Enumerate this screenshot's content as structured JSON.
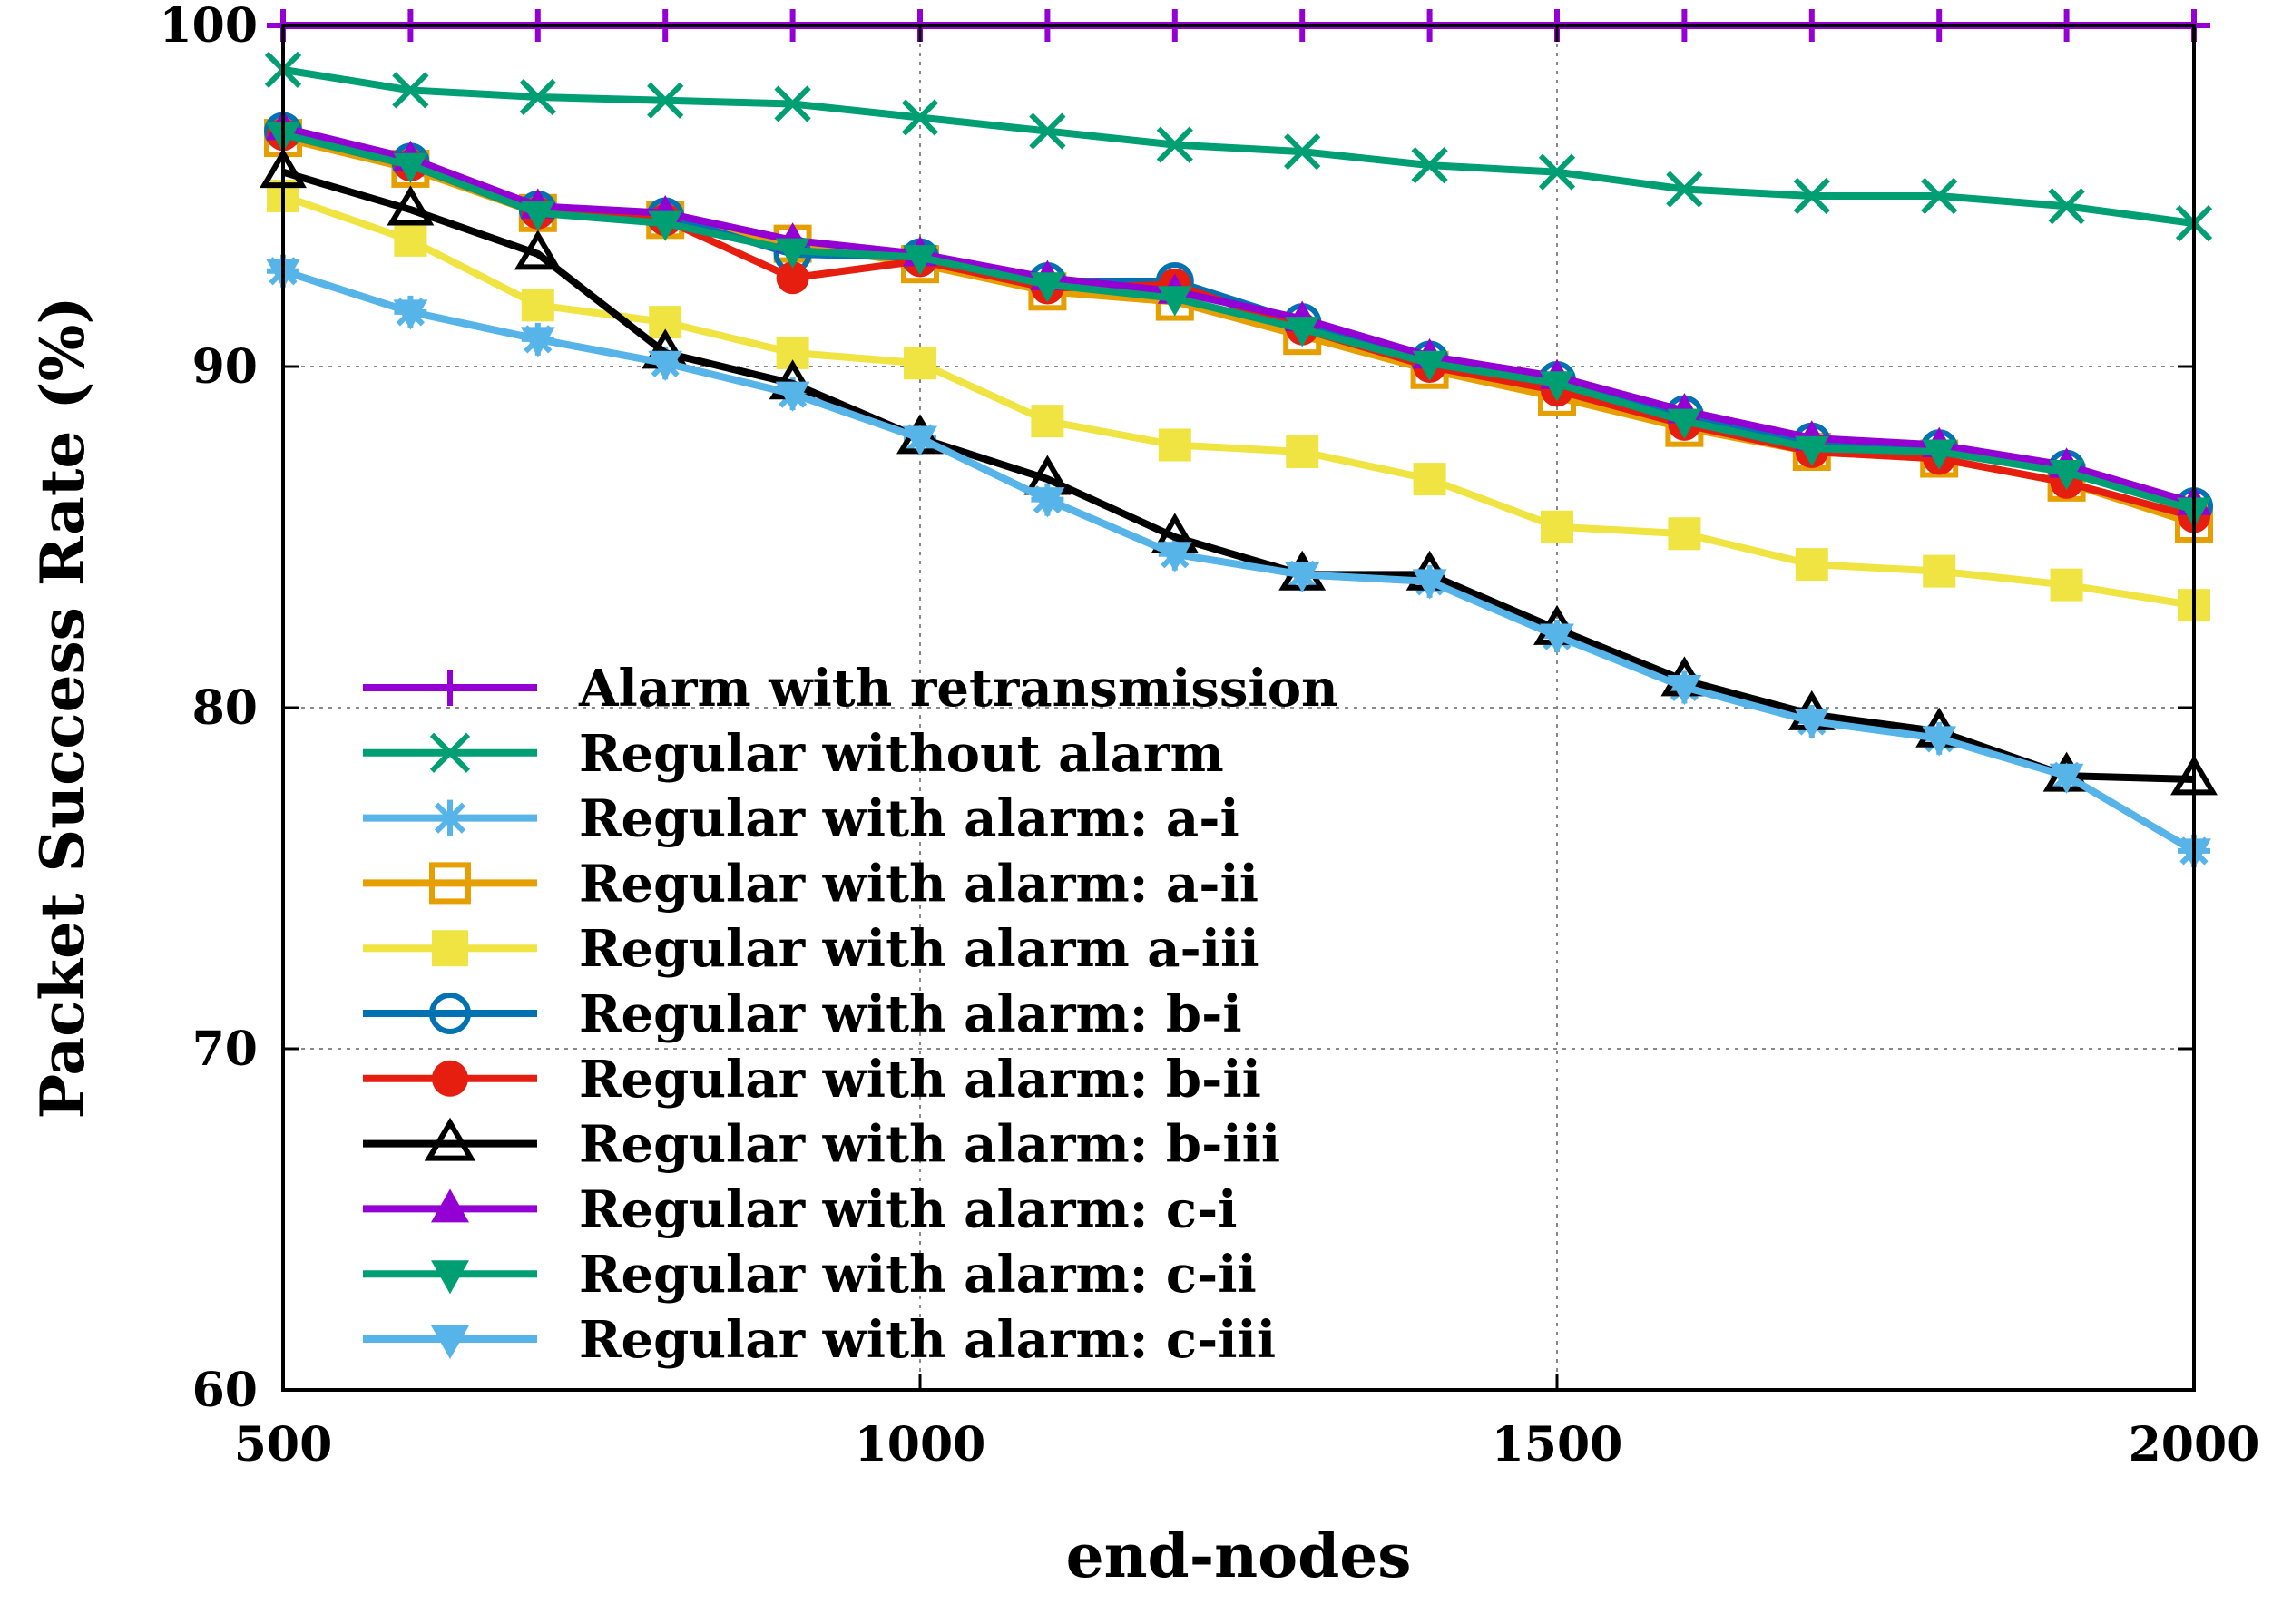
{
  "chart_data": {
    "type": "line",
    "xlabel": "end-nodes",
    "ylabel": "Packet Success Rate (%)",
    "xlim": [
      500,
      2000
    ],
    "ylim": [
      60,
      100
    ],
    "xticks": [
      500,
      1000,
      1500,
      2000
    ],
    "yticks": [
      60,
      70,
      80,
      90,
      100
    ],
    "grid": true,
    "legend_position": "bottom-left",
    "x": [
      500,
      600,
      700,
      800,
      900,
      1000,
      1100,
      1200,
      1300,
      1400,
      1500,
      1600,
      1700,
      1800,
      1900,
      2000
    ],
    "series": [
      {
        "name": "Alarm with retransmission",
        "color": "#9400d3",
        "marker": "plus",
        "values": [
          100,
          100,
          100,
          100,
          100,
          100,
          100,
          100,
          100,
          100,
          100,
          100,
          100,
          100,
          100,
          100
        ]
      },
      {
        "name": "Regular without alarm",
        "color": "#009e73",
        "marker": "cross",
        "values": [
          98.7,
          98.1,
          97.9,
          97.8,
          97.7,
          97.3,
          96.9,
          96.5,
          96.3,
          95.9,
          95.7,
          95.2,
          95.0,
          95.0,
          94.7,
          94.2
        ]
      },
      {
        "name": "Regular with alarm: a-i",
        "color": "#56b4e9",
        "marker": "star",
        "values": [
          92.8,
          91.6,
          90.8,
          90.1,
          89.2,
          87.9,
          86.1,
          84.5,
          83.9,
          83.7,
          82.1,
          80.6,
          79.6,
          79.1,
          78.0,
          75.8
        ]
      },
      {
        "name": "Regular with alarm: a-ii",
        "color": "#e69f00",
        "marker": "square-open",
        "values": [
          96.7,
          95.8,
          94.5,
          94.3,
          93.6,
          93.0,
          92.2,
          91.9,
          90.9,
          89.9,
          89.1,
          88.2,
          87.5,
          87.3,
          86.6,
          85.4
        ]
      },
      {
        "name": "Regular with alarm a-iii",
        "color": "#f0e442",
        "marker": "square-filled",
        "values": [
          95.0,
          93.7,
          91.8,
          91.3,
          90.4,
          90.1,
          88.4,
          87.7,
          87.5,
          86.7,
          85.3,
          85.1,
          84.2,
          84.0,
          83.6,
          83.0
        ]
      },
      {
        "name": "Regular with alarm: b-i",
        "color": "#0072b2",
        "marker": "circle-open",
        "values": [
          96.9,
          96.0,
          94.6,
          94.4,
          93.3,
          93.2,
          92.5,
          92.5,
          91.3,
          90.2,
          89.6,
          88.6,
          87.8,
          87.6,
          87.0,
          85.9
        ]
      },
      {
        "name": "Regular with alarm: b-ii",
        "color": "#e51e10",
        "marker": "circle-filled",
        "values": [
          96.8,
          95.9,
          94.5,
          94.3,
          92.6,
          93.1,
          92.3,
          92.4,
          91.1,
          90.0,
          89.3,
          88.3,
          87.5,
          87.3,
          86.6,
          85.6
        ]
      },
      {
        "name": "Regular with alarm: b-iii",
        "color": "#000000",
        "marker": "triangle-open",
        "values": [
          95.7,
          94.6,
          93.3,
          90.4,
          89.5,
          87.9,
          86.7,
          85.0,
          83.9,
          83.9,
          82.3,
          80.8,
          79.8,
          79.3,
          78.0,
          77.9
        ]
      },
      {
        "name": "Regular with alarm: c-i",
        "color": "#9400d3",
        "marker": "triangle-filled",
        "values": [
          97.0,
          96.1,
          94.7,
          94.5,
          93.7,
          93.3,
          92.6,
          92.2,
          91.4,
          90.3,
          89.7,
          88.7,
          87.9,
          87.7,
          87.1,
          86.0
        ]
      },
      {
        "name": "Regular with alarm: c-ii",
        "color": "#009e73",
        "marker": "triangle-down",
        "values": [
          96.8,
          95.9,
          94.5,
          94.2,
          93.4,
          93.2,
          92.4,
          92.0,
          91.1,
          90.1,
          89.5,
          88.4,
          87.6,
          87.5,
          86.9,
          85.8
        ]
      },
      {
        "name": "Regular with alarm: c-iii",
        "color": "#56b4e9",
        "marker": "triangle-down",
        "values": [
          92.8,
          91.6,
          90.8,
          90.1,
          89.2,
          87.9,
          86.1,
          84.5,
          83.9,
          83.7,
          82.1,
          80.6,
          79.6,
          79.1,
          78.0,
          75.8
        ]
      }
    ]
  }
}
